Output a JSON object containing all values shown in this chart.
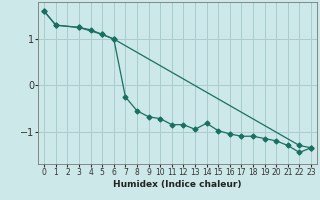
{
  "xlabel": "Humidex (Indice chaleur)",
  "background_color": "#cce8e8",
  "grid_color": "#aacccc",
  "line_color": "#1a7060",
  "xlim": [
    -0.5,
    23.5
  ],
  "ylim": [
    -1.7,
    1.8
  ],
  "yticks": [
    -1,
    0,
    1
  ],
  "xticks": [
    0,
    1,
    2,
    3,
    4,
    5,
    6,
    7,
    8,
    9,
    10,
    11,
    12,
    13,
    14,
    15,
    16,
    17,
    18,
    19,
    20,
    21,
    22,
    23
  ],
  "line1_x": [
    0,
    1,
    3,
    4,
    5,
    6,
    7,
    8,
    9,
    10,
    11,
    12,
    13,
    14,
    15,
    16,
    17,
    18,
    19,
    20,
    21,
    22,
    23
  ],
  "line1_y": [
    1.6,
    1.3,
    1.25,
    1.2,
    1.1,
    1.0,
    -0.25,
    -0.55,
    -0.68,
    -0.72,
    -0.85,
    -0.85,
    -0.95,
    -0.82,
    -0.98,
    -1.05,
    -1.1,
    -1.1,
    -1.15,
    -1.2,
    -1.3,
    -1.45,
    -1.35
  ],
  "line2_x": [
    0,
    1,
    3,
    5,
    6,
    22,
    23
  ],
  "line2_y": [
    1.6,
    1.3,
    1.25,
    1.1,
    1.0,
    -1.3,
    -1.35
  ],
  "marker_style": "D",
  "marker_size": 2.5,
  "line_width": 0.9
}
